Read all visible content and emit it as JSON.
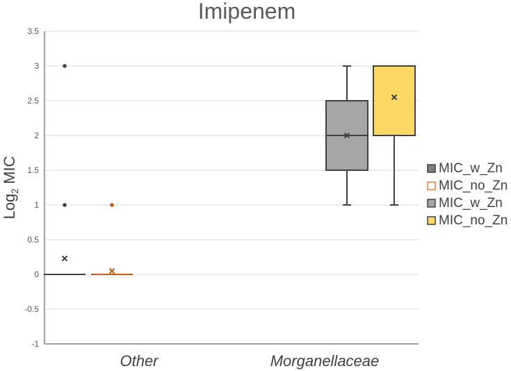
{
  "chart_data": {
    "type": "box",
    "title": "Imipenem",
    "ylabel_main": "Log",
    "ylabel_sub": "2",
    "ylabel_rest": " MIC",
    "xlabel": "",
    "ylim": [
      -1,
      3.5
    ],
    "yticks": [
      "-1",
      "-0.5",
      "0",
      "0.5",
      "1",
      "1.5",
      "2",
      "2.5",
      "3",
      "3.5"
    ],
    "ytick_values": [
      -1,
      -0.5,
      0,
      0.5,
      1,
      1.5,
      2,
      2.5,
      3,
      3.5
    ],
    "categories": [
      "Other",
      "Morganellaceae"
    ],
    "series": [
      {
        "name": "MIC_w_Zn",
        "category": "Other",
        "color": "#404040",
        "fill": "none",
        "min": 0,
        "q1": 0,
        "median": 0,
        "q3": 0,
        "max": 0,
        "mean": 0.23,
        "outliers": [
          1,
          3
        ]
      },
      {
        "name": "MIC_no_Zn",
        "category": "Other",
        "color": "#C55A11",
        "fill": "none",
        "min": 0,
        "q1": 0,
        "median": 0,
        "q3": 0,
        "max": 0,
        "mean": 0.05,
        "outliers": [
          1
        ]
      },
      {
        "name": "MIC_w_Zn",
        "category": "Morganellaceae",
        "color": "#404040",
        "fill": "#A5A5A5",
        "min": 1,
        "q1": 1.5,
        "median": 2,
        "q3": 2.5,
        "max": 3,
        "mean": 2,
        "outliers": []
      },
      {
        "name": "MIC_no_Zn",
        "category": "Morganellaceae",
        "color": "#404040",
        "fill": "#FFD966",
        "min": 1,
        "q1": 2,
        "median": 3,
        "q3": 3,
        "max": 3,
        "mean": 2.55,
        "outliers": []
      }
    ],
    "legend": [
      {
        "label": "MIC_w_Zn",
        "fill": "#7F7F7F",
        "stroke": "#404040"
      },
      {
        "label": "MIC_no_Zn",
        "fill": "#FFFFFF",
        "stroke": "#ED7D31"
      },
      {
        "label": "MIC_w_Zn",
        "fill": "#A5A5A5",
        "stroke": "#404040"
      },
      {
        "label": "MIC_no_Zn",
        "fill": "#FFD966",
        "stroke": "#404040"
      }
    ],
    "legend_position": "right",
    "grid": true
  }
}
